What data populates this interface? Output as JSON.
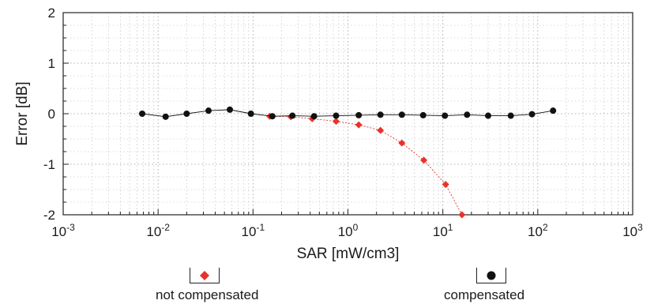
{
  "chart_data": {
    "type": "line",
    "xlabel": "SAR [mW/cm3]",
    "ylabel": "Error [dB]",
    "x_scale": "log",
    "xlim": [
      0.001,
      1000
    ],
    "ylim": [
      -2,
      2
    ],
    "x_ticks": [
      {
        "value": 0.001,
        "base": "10",
        "exp": "-3"
      },
      {
        "value": 0.01,
        "base": "10",
        "exp": "-2"
      },
      {
        "value": 0.1,
        "base": "10",
        "exp": "-1"
      },
      {
        "value": 1,
        "base": "10",
        "exp": "0"
      },
      {
        "value": 10,
        "base": "10",
        "exp": "1"
      },
      {
        "value": 100,
        "base": "10",
        "exp": "2"
      },
      {
        "value": 1000,
        "base": "10",
        "exp": "3"
      }
    ],
    "y_ticks": [
      {
        "value": 2,
        "label": "2"
      },
      {
        "value": 1,
        "label": "1"
      },
      {
        "value": 0,
        "label": "0"
      },
      {
        "value": -1,
        "label": "-1"
      },
      {
        "value": -2,
        "label": "-2"
      }
    ],
    "grid": true,
    "legend_placement": "bottom",
    "series": [
      {
        "name": "not compensated",
        "color": "#e8332a",
        "marker": "diamond",
        "points": [
          [
            0.15,
            -0.05
          ],
          [
            0.25,
            -0.06
          ],
          [
            0.42,
            -0.1
          ],
          [
            0.75,
            -0.15
          ],
          [
            1.3,
            -0.22
          ],
          [
            2.2,
            -0.33
          ],
          [
            3.7,
            -0.58
          ],
          [
            6.3,
            -0.92
          ],
          [
            10.7,
            -1.4
          ],
          [
            15.9,
            -2.0
          ]
        ]
      },
      {
        "name": "compensated",
        "color": "#111111",
        "marker": "circle",
        "points": [
          [
            0.0068,
            0.0
          ],
          [
            0.012,
            -0.06
          ],
          [
            0.02,
            0.0
          ],
          [
            0.034,
            0.06
          ],
          [
            0.057,
            0.08
          ],
          [
            0.095,
            0.0
          ],
          [
            0.16,
            -0.05
          ],
          [
            0.26,
            -0.04
          ],
          [
            0.44,
            -0.05
          ],
          [
            0.75,
            -0.04
          ],
          [
            1.3,
            -0.03
          ],
          [
            2.2,
            -0.02
          ],
          [
            3.7,
            -0.02
          ],
          [
            6.2,
            -0.03
          ],
          [
            10.5,
            -0.04
          ],
          [
            18,
            -0.02
          ],
          [
            30,
            -0.04
          ],
          [
            52,
            -0.04
          ],
          [
            87,
            -0.01
          ],
          [
            145,
            0.06
          ]
        ]
      }
    ]
  }
}
